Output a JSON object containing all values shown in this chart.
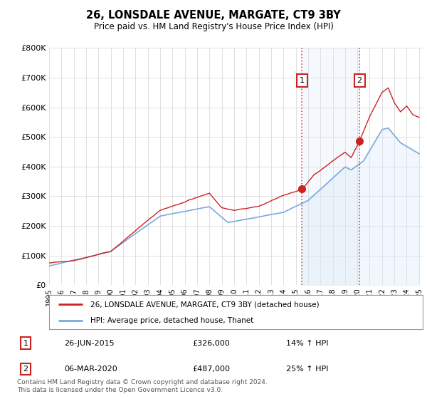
{
  "title": "26, LONSDALE AVENUE, MARGATE, CT9 3BY",
  "subtitle": "Price paid vs. HM Land Registry's House Price Index (HPI)",
  "ylim": [
    0,
    800000
  ],
  "yticks": [
    0,
    100000,
    200000,
    300000,
    400000,
    500000,
    600000,
    700000,
    800000
  ],
  "ytick_labels": [
    "£0",
    "£100K",
    "£200K",
    "£300K",
    "£400K",
    "£500K",
    "£600K",
    "£700K",
    "£800K"
  ],
  "line_color_red": "#cc2222",
  "line_color_blue": "#7aaadd",
  "fill_color_blue": "#d8eaf8",
  "vline_color": "#cc2222",
  "marker1_date": 2015.5,
  "marker2_date": 2020.17,
  "marker1_price": 326000,
  "marker2_price": 487000,
  "annotation_box_color": "#cc2222",
  "legend_red_label": "26, LONSDALE AVENUE, MARGATE, CT9 3BY (detached house)",
  "legend_blue_label": "HPI: Average price, detached house, Thanet",
  "table_row1": [
    "1",
    "26-JUN-2015",
    "£326,000",
    "14% ↑ HPI"
  ],
  "table_row2": [
    "2",
    "06-MAR-2020",
    "£487,000",
    "25% ↑ HPI"
  ],
  "footnote": "Contains HM Land Registry data © Crown copyright and database right 2024.\nThis data is licensed under the Open Government Licence v3.0.",
  "background_color": "#ffffff",
  "plot_bg_color": "#ffffff",
  "grid_color": "#e0e0e0"
}
